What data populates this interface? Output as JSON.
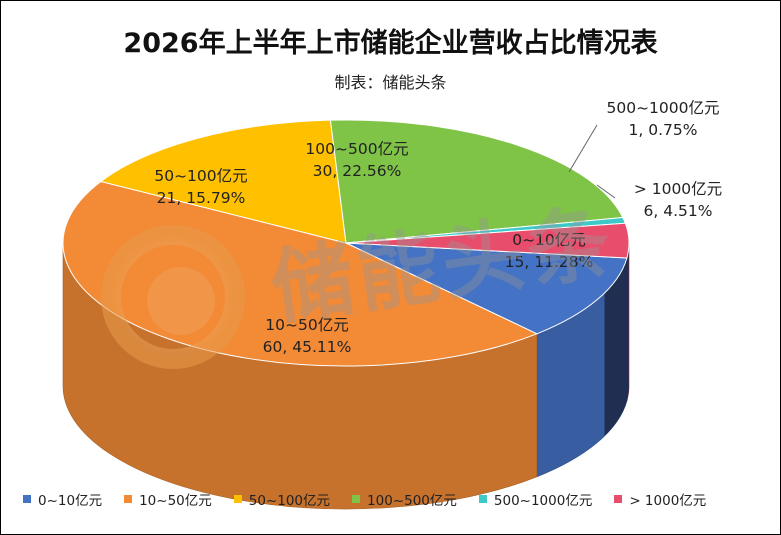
{
  "chart_data": {
    "type": "pie",
    "title": "2026年上半年上市储能企业营收占比情况表",
    "subtitle": "制表：储能头条",
    "watermark": "储能头条",
    "categories": [
      "0~10亿元",
      "10~50亿元",
      "50~100亿元",
      "100~500亿元",
      "500~1000亿元",
      ">1000亿元"
    ],
    "values": [
      15,
      60,
      21,
      30,
      1,
      6
    ],
    "percents": [
      11.28,
      45.11,
      15.79,
      22.56,
      0.75,
      4.51
    ],
    "data_labels": [
      {
        "name": "0~10亿元",
        "value": "15, 11.28%"
      },
      {
        "name": "10~50亿元",
        "value": "60, 45.11%"
      },
      {
        "name": "50~100亿元",
        "value": "21, 15.79%"
      },
      {
        "name": "100~500亿元",
        "value": "30, 22.56%"
      },
      {
        "name": "500~1000亿元",
        "value": "1, 0.75%"
      },
      {
        "name": "> 1000亿元",
        "value": "6, 4.51%"
      }
    ],
    "legend": [
      "0~10亿元",
      "10~50亿元",
      "50~100亿元",
      "100~500亿元",
      "500~1000亿元",
      "> 1000亿元"
    ],
    "legend_position": "bottom",
    "colors": [
      "#4472c4",
      "#f28a36",
      "#ffc000",
      "#7fc347",
      "#3ec9c9",
      "#e84e6b"
    ],
    "style": "3d"
  }
}
